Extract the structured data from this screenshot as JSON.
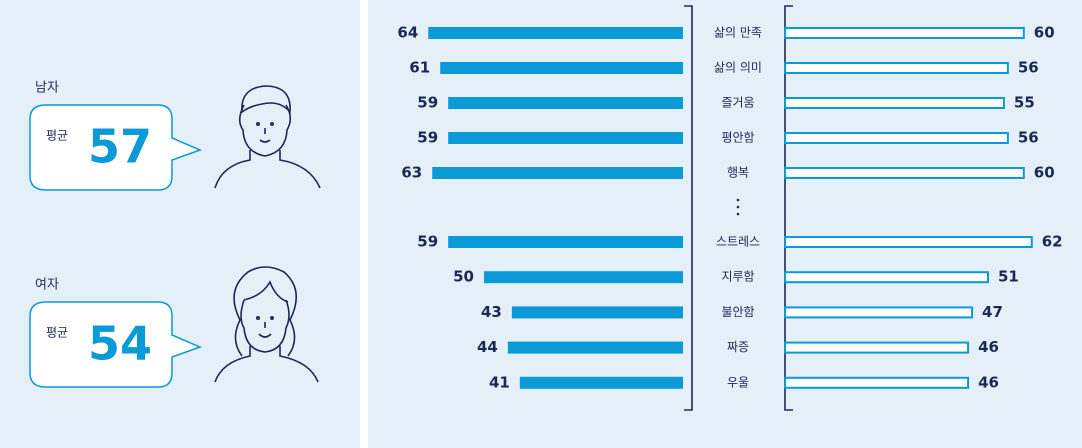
{
  "left_panel": {
    "groups": [
      {
        "label": "남자",
        "avg_label": "평균",
        "avg": 57
      },
      {
        "label": "여자",
        "avg_label": "평균",
        "avg": 54
      }
    ]
  },
  "chart_data": {
    "type": "butterfly",
    "categories": [
      "삶의 만족",
      "삶의 의미",
      "즐거움",
      "평안함",
      "행복",
      "스트레스",
      "지루함",
      "불안함",
      "짜증",
      "우울"
    ],
    "series": [
      {
        "color": "#0a9ad8",
        "values": [
          64,
          61,
          59,
          59,
          63,
          59,
          50,
          43,
          44,
          41
        ]
      },
      {
        "color": "#0a9ad8",
        "values": [
          60,
          56,
          55,
          56,
          60,
          62,
          51,
          47,
          46,
          46
        ]
      }
    ]
  }
}
